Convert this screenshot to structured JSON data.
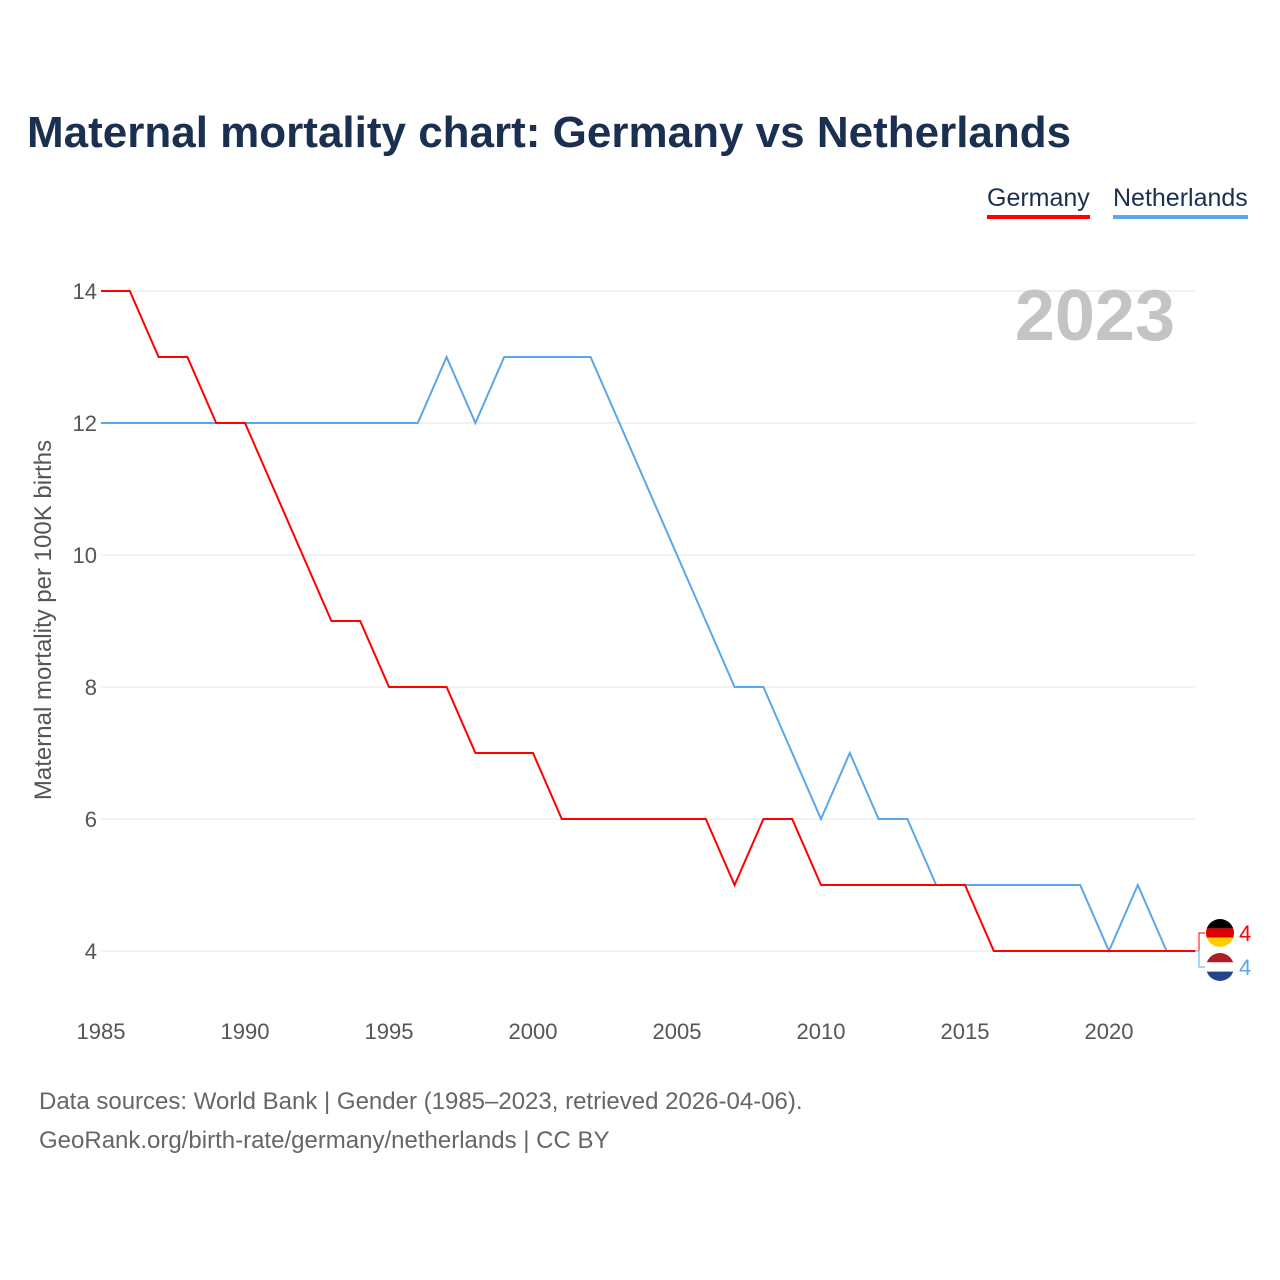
{
  "title": "Maternal mortality chart: Germany vs Netherlands",
  "footer": {
    "line1": "Data sources: World Bank | Gender (1985–2023, retrieved 2026-04-06).",
    "line2": "GeoRank.org/birth-rate/germany/netherlands | CC BY"
  },
  "chart_data": {
    "type": "line",
    "title": "Maternal mortality chart: Germany vs Netherlands",
    "ylabel": "Maternal mortality per 100K births",
    "xlabel": "",
    "year_label": "2023",
    "x": [
      1985,
      1986,
      1987,
      1988,
      1989,
      1990,
      1991,
      1992,
      1993,
      1994,
      1995,
      1996,
      1997,
      1998,
      1999,
      2000,
      2001,
      2002,
      2003,
      2004,
      2005,
      2006,
      2007,
      2008,
      2009,
      2010,
      2011,
      2012,
      2013,
      2014,
      2015,
      2016,
      2017,
      2018,
      2019,
      2020,
      2021,
      2022,
      2023
    ],
    "xlim": [
      1985,
      2023
    ],
    "ylim": [
      3.2,
      14.2
    ],
    "xticks": [
      "1985",
      "1990",
      "1995",
      "2000",
      "2005",
      "2010",
      "2015",
      "2020"
    ],
    "yticks": [
      "4",
      "6",
      "8",
      "10",
      "12",
      "14"
    ],
    "legend": "top-right",
    "grid": true,
    "series": [
      {
        "name": "Germany",
        "color": "#ff0000",
        "end_label": "4",
        "values": [
          14,
          14,
          13,
          13,
          12,
          12,
          11,
          10,
          9,
          9,
          8,
          8,
          8,
          7,
          7,
          7,
          6,
          6,
          6,
          6,
          6,
          6,
          5,
          6,
          6,
          5,
          5,
          5,
          5,
          5,
          5,
          4,
          4,
          4,
          4,
          4,
          4,
          4,
          4
        ]
      },
      {
        "name": "Netherlands",
        "color": "#5aa6ec",
        "end_label": "4",
        "values": [
          12,
          12,
          12,
          12,
          12,
          12,
          12,
          12,
          12,
          12,
          12,
          12,
          13,
          12,
          13,
          13,
          13,
          13,
          12,
          11,
          10,
          9,
          8,
          8,
          7,
          6,
          7,
          6,
          6,
          5,
          5,
          5,
          5,
          5,
          5,
          4,
          5,
          4,
          4
        ]
      }
    ]
  }
}
